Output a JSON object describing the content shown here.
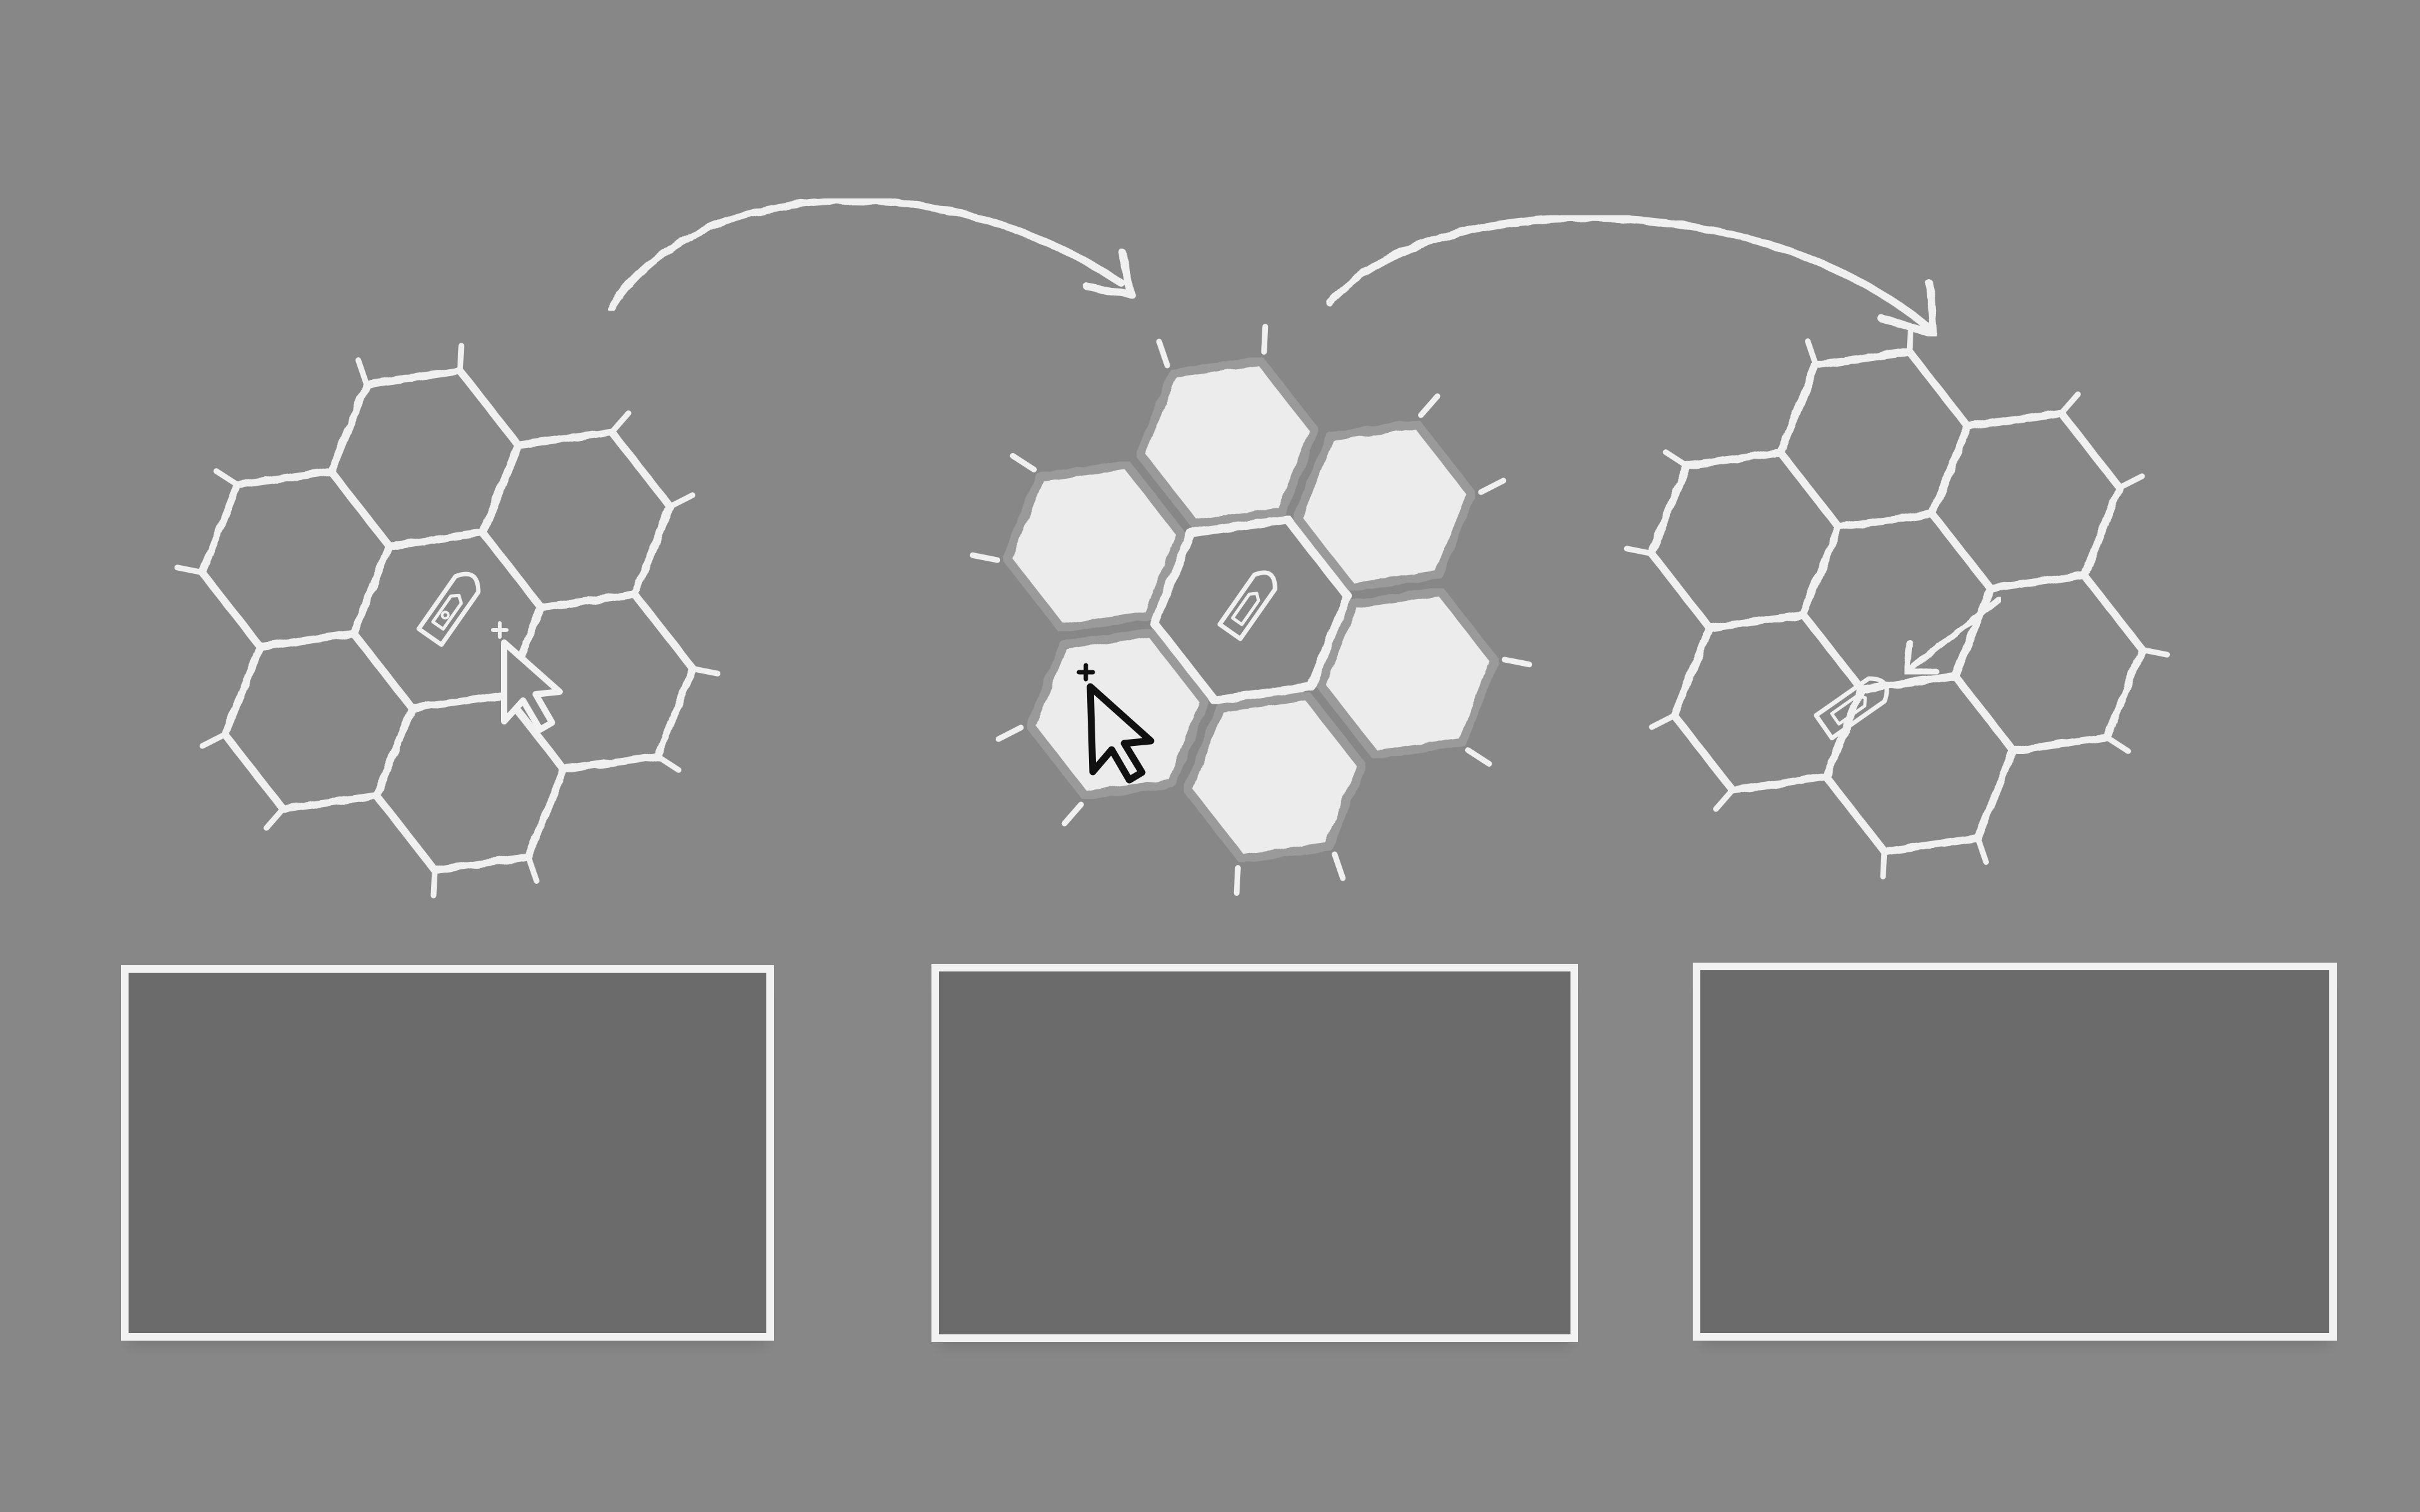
{
  "diagram": {
    "steps": [
      {
        "id": "select-unit",
        "state": "unit selected, cursor over unit",
        "caption": ""
      },
      {
        "id": "show-moves",
        "state": "adjacent hexes highlighted, cursor over target hex",
        "caption": ""
      },
      {
        "id": "unit-moved",
        "state": "unit moved to target hex",
        "caption": ""
      }
    ],
    "colors": {
      "background": "#878787",
      "chalk": "#f0f0f0",
      "highlight_fill": "#ececec",
      "panel_fill": "#6b6b6b",
      "cursor_dark": "#111111"
    },
    "icons": [
      "boat-icon",
      "cursor-arrow-icon",
      "flow-arrow-icon",
      "move-arrow-icon"
    ]
  }
}
